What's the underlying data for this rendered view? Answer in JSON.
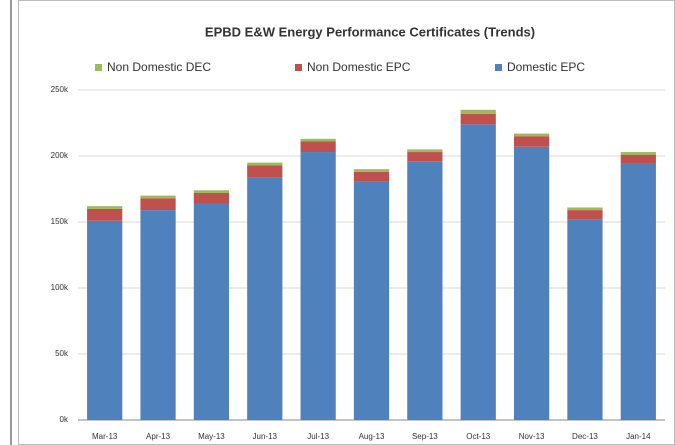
{
  "chart_data": {
    "type": "stacked_bar",
    "title": "EPBD E&W Energy Performance Certificates (Trends)",
    "categories": [
      "Mar-13",
      "Apr-13",
      "May-13",
      "Jun-13",
      "Jul-13",
      "Aug-13",
      "Sep-13",
      "Oct-13",
      "Nov-13",
      "Dec-13",
      "Jan-14"
    ],
    "series": [
      {
        "name": "Domestic EPC",
        "color": "#4f81bd",
        "values": [
          151000,
          159000,
          164000,
          184000,
          203000,
          181000,
          196000,
          224000,
          207000,
          152000,
          194000
        ]
      },
      {
        "name": "Non Domestic EPC",
        "color": "#c0504d",
        "values": [
          9000,
          9000,
          8000,
          9000,
          8000,
          7000,
          7000,
          8000,
          8000,
          7000,
          7000
        ]
      },
      {
        "name": "Non Domestic DEC",
        "color": "#9bbb59",
        "values": [
          2000,
          2000,
          2000,
          2000,
          2000,
          2000,
          2000,
          3000,
          2000,
          2000,
          2000
        ]
      }
    ],
    "ylim": [
      0,
      250000
    ],
    "yticks": [
      {
        "value": 0,
        "label": "0k"
      },
      {
        "value": 50000,
        "label": "50k"
      },
      {
        "value": 100000,
        "label": "100k"
      },
      {
        "value": 150000,
        "label": "150k"
      },
      {
        "value": 200000,
        "label": "200k"
      },
      {
        "value": 250000,
        "label": "250k"
      }
    ],
    "grid": true,
    "legend": "top"
  }
}
